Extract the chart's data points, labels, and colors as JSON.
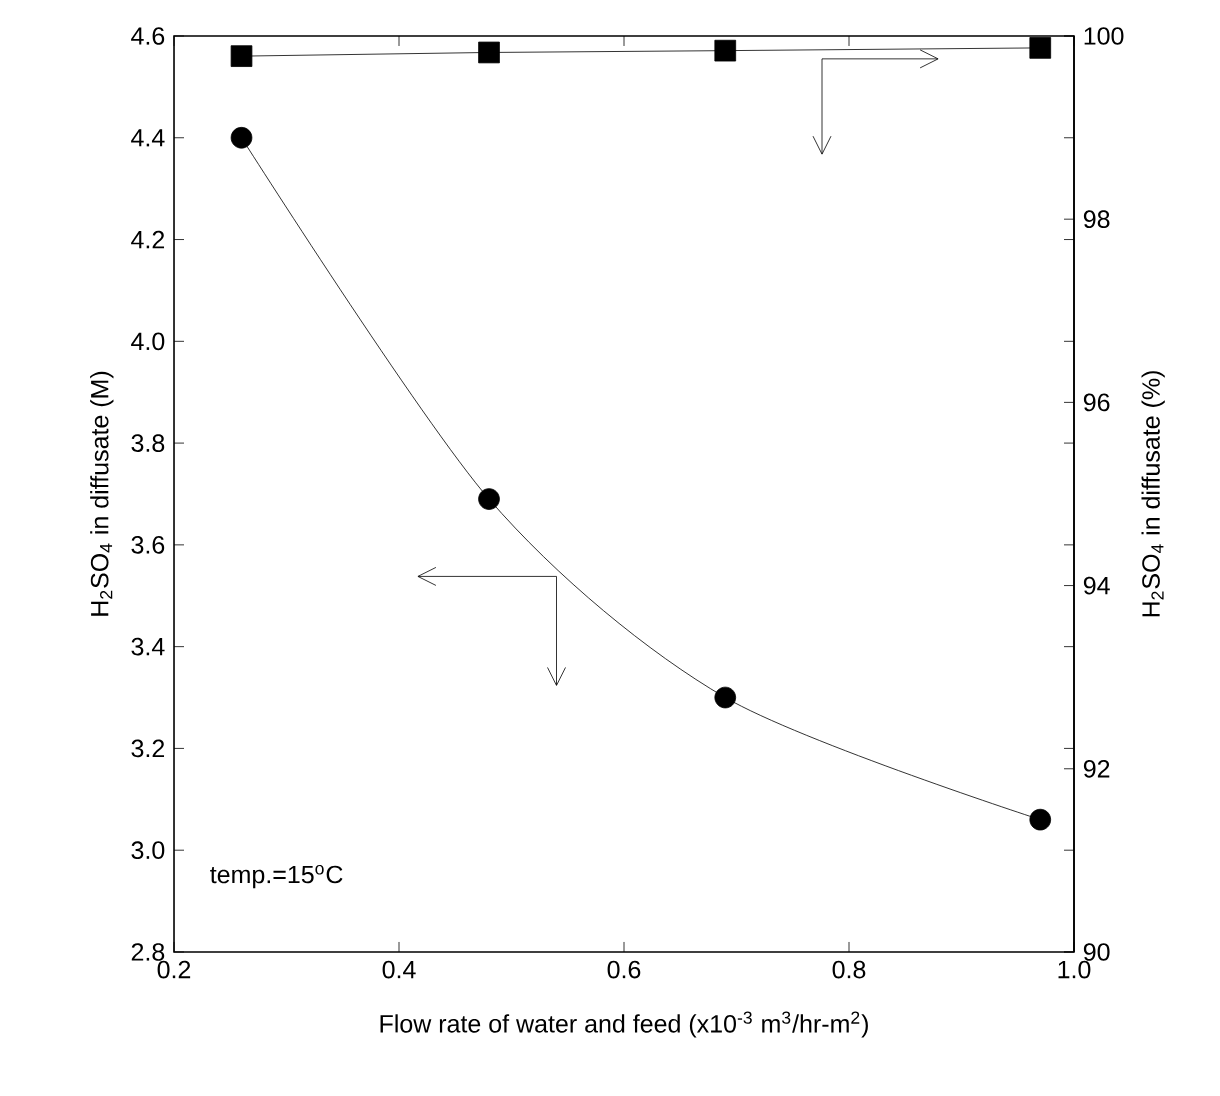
{
  "chart_data": {
    "type": "line",
    "xlabel": "Flow rate of water and feed (x10$^{-3}$ m$^{3}$/hr-m$^{2}$)",
    "ylabel": "H$_{2}$SO$_{4}$ in diffusate (M)",
    "y2label": "H$_{2}$SO$_{4}$ in diffusate (%)",
    "annotations": [
      "temp.=15$^{o}$C"
    ],
    "x": [
      0.26,
      0.48,
      0.69,
      0.97
    ],
    "series": [
      {
        "color": "#000000",
        "values": [
          4.4,
          3.69,
          3.3,
          3.06
        ],
        "marker": "circle"
      },
      {
        "color": "#000000",
        "values": [
          99.78,
          99.82,
          99.84,
          99.87
        ],
        "marker": "square",
        "axis": "y2"
      }
    ],
    "xlim": [
      0.2,
      1.0
    ],
    "xticks": [
      0.2,
      0.4,
      0.6,
      0.8,
      {
        "value": 1.0,
        "label": "1.0"
      }
    ],
    "ylim": [
      2.8,
      4.6
    ],
    "yticks": [
      2.8,
      {
        "value": 3.0,
        "label": "3.0"
      },
      3.2,
      3.4,
      3.6,
      3.8,
      {
        "value": 4.0,
        "label": "4.0"
      },
      4.2,
      4.4,
      4.6
    ],
    "y2lim": [
      90,
      100
    ],
    "y2ticks": [
      90,
      92,
      94,
      96,
      98,
      100
    ],
    "line_style": "solid"
  }
}
